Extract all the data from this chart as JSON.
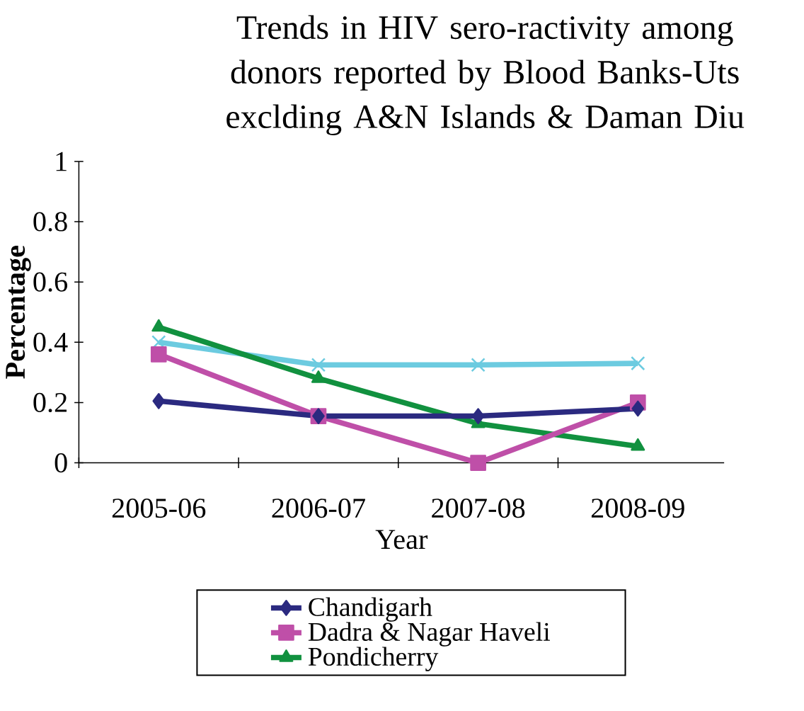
{
  "chart_data": {
    "type": "line",
    "title": "Trends in HIV sero-ractivity among donors reported by Blood Banks-Uts exclding A&N Islands & Daman Diu",
    "xlabel": "Year",
    "ylabel": "Percentage",
    "categories": [
      "2005-06",
      "2006-07",
      "2007-08",
      "2008-09"
    ],
    "series": [
      {
        "name": "Chandigarh",
        "color": "#2b2a80",
        "marker": "diamond",
        "values": [
          0.205,
          0.155,
          0.155,
          0.18
        ]
      },
      {
        "name": "Dadra & Nagar Haveli",
        "color": "#bf4fa8",
        "marker": "square",
        "values": [
          0.36,
          0.155,
          0.0,
          0.2
        ]
      },
      {
        "name": "Pondicherry",
        "color": "#11913f",
        "marker": "triangle",
        "values": [
          0.45,
          0.28,
          0.13,
          0.055
        ]
      },
      {
        "color": "#6ccbe0",
        "marker": "cross",
        "values": [
          0.4,
          0.325,
          0.325,
          0.33
        ]
      }
    ],
    "ylim": [
      0,
      1
    ],
    "yticks": [
      0,
      0.2,
      0.4,
      0.6,
      0.8,
      1
    ],
    "grid": false,
    "legend": "bottom"
  }
}
